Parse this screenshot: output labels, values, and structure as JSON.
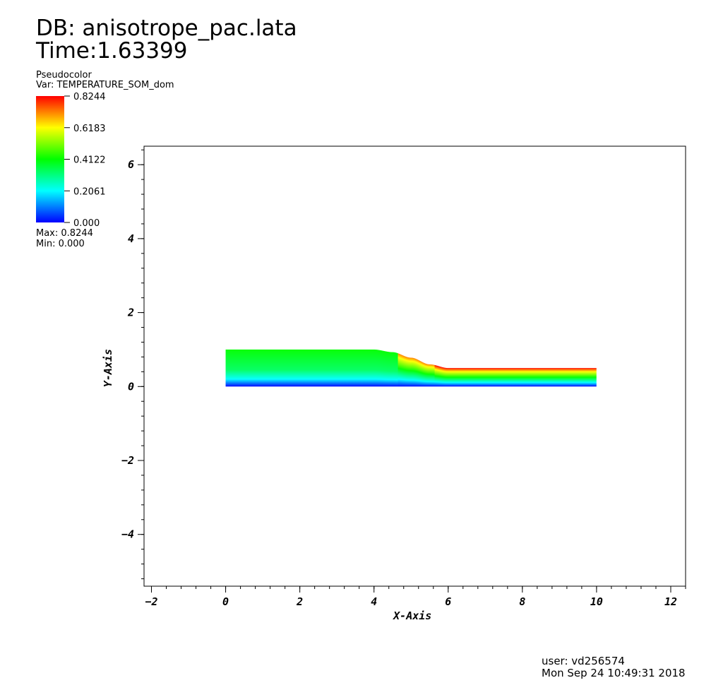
{
  "header": {
    "db": "DB: anisotrope_pac.lata",
    "time": "Time:1.63399"
  },
  "legend": {
    "plot_type": "Pseudocolor",
    "variable": "Var: TEMPERATURE_SOM_dom",
    "max": "Max:  0.8244",
    "min": "Min:  0.000",
    "tick_labels": [
      "0.8244",
      "0.6183",
      "0.4122",
      "0.2061",
      "0.000"
    ],
    "colors": [
      "#ff0000",
      "#ffff00",
      "#00ff00",
      "#00ffff",
      "#0000ff"
    ]
  },
  "footer": {
    "user": "user: vd256574",
    "date": "Mon Sep 24 10:49:31 2018"
  },
  "chart_data": {
    "type": "heatmap",
    "xlabel": "X-Axis",
    "ylabel": "Y-Axis",
    "xlim": [
      -2.2,
      12.4
    ],
    "ylim": [
      -5.4,
      6.5
    ],
    "xticks": [
      -2,
      0,
      2,
      4,
      6,
      8,
      10,
      12
    ],
    "yticks": [
      -4,
      -2,
      0,
      2,
      4,
      6
    ],
    "color_range": [
      0.0,
      0.8244
    ],
    "domain_outline": {
      "x_min": 0,
      "x_max": 10,
      "bottom_y": 0,
      "top_profile": [
        [
          0,
          1.0
        ],
        [
          4,
          1.0
        ],
        [
          4.5,
          0.93
        ],
        [
          5.0,
          0.78
        ],
        [
          5.5,
          0.6
        ],
        [
          6,
          0.5
        ],
        [
          10,
          0.5
        ]
      ]
    },
    "field": "TEMPERATURE_SOM_dom varies from 0.000 at y=0 to 0.8244 at the upper wall"
  }
}
